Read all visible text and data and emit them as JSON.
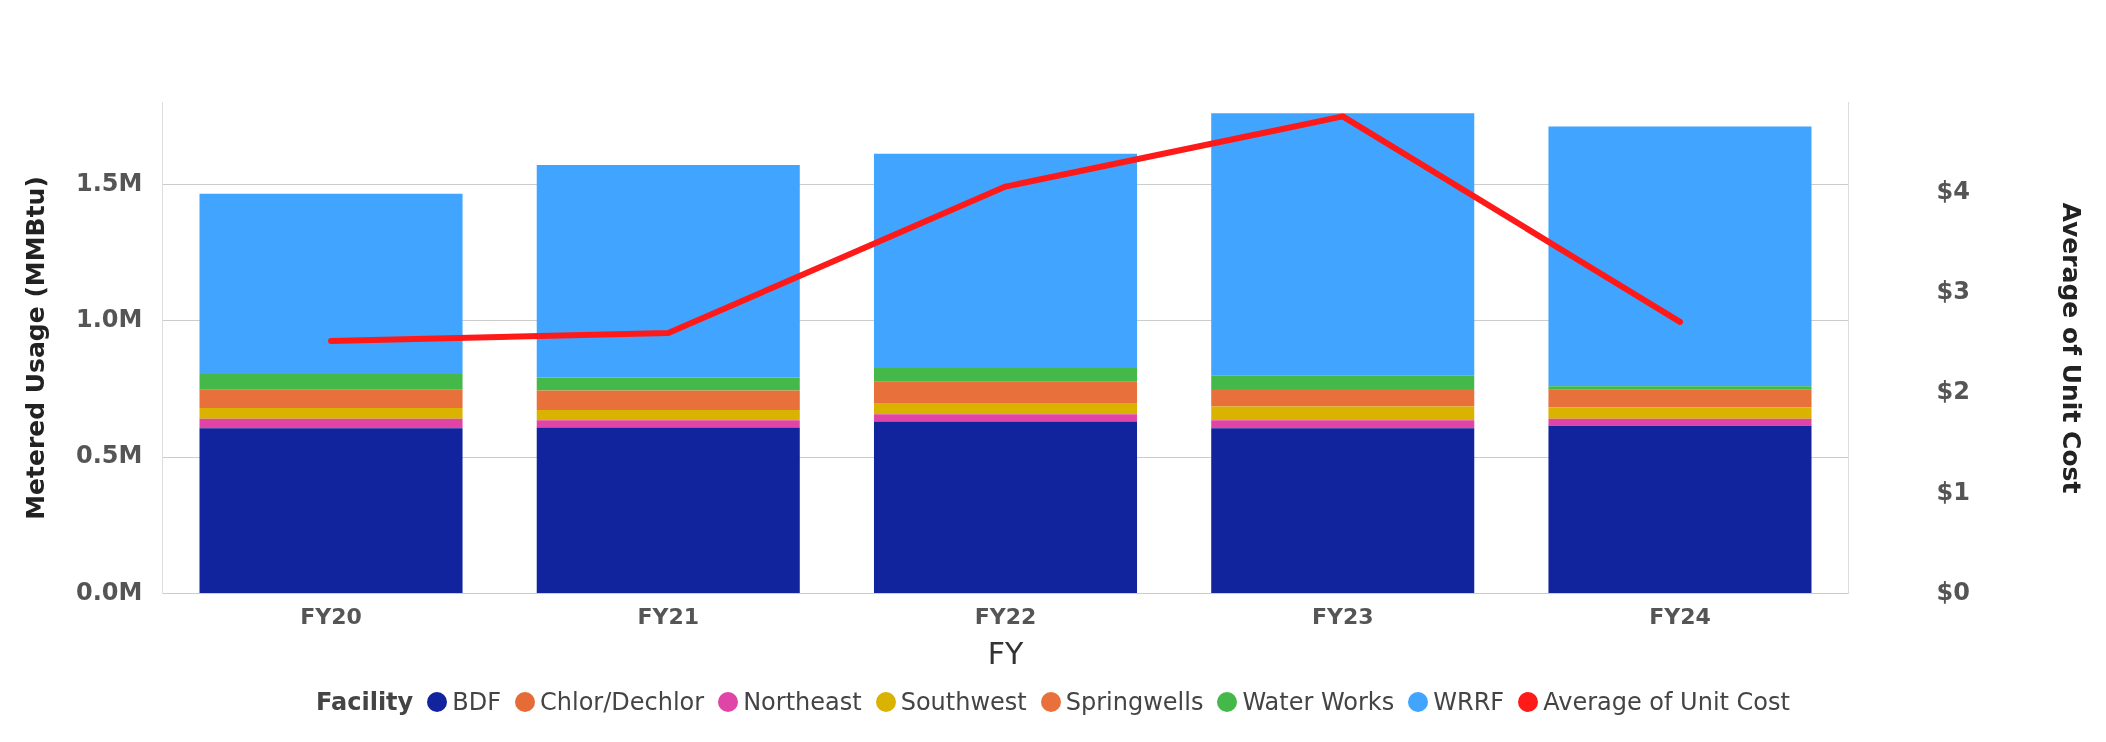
{
  "chart_data": {
    "type": "bar",
    "stacked": true,
    "xlabel": "FY",
    "ylabel": "Metered Usage (MMBtu)",
    "y2label": "Average of Unit Cost",
    "legend_title": "Facility",
    "legend": "bottom",
    "grid": "y",
    "marker": "none",
    "line_style": "solid",
    "categories": [
      "FY20",
      "FY21",
      "FY22",
      "FY23",
      "FY24"
    ],
    "ylim": [
      0,
      1800000
    ],
    "yticks": [
      {
        "value": 0,
        "label": "0.0M"
      },
      {
        "value": 500000,
        "label": "0.5M"
      },
      {
        "value": 1000000,
        "label": "1.0M"
      },
      {
        "value": 1500000,
        "label": "1.5M"
      }
    ],
    "y2lim": [
      0,
      4.9
    ],
    "y2ticks": [
      {
        "value": 0,
        "label": "$0"
      },
      {
        "value": 1,
        "label": "$1"
      },
      {
        "value": 2,
        "label": "$2"
      },
      {
        "value": 3,
        "label": "$3"
      },
      {
        "value": 4,
        "label": "$4"
      }
    ],
    "series": [
      {
        "name": "BDF",
        "color": "#12239e",
        "values": [
          606000,
          609000,
          631000,
          606000,
          615000
        ]
      },
      {
        "name": "Chlor/Dechlor",
        "color": "#e66c37",
        "values": [
          null,
          null,
          null,
          null,
          null
        ]
      },
      {
        "name": "Northeast",
        "color": "#e044a7",
        "values": [
          35000,
          26000,
          26000,
          29000,
          26000
        ]
      },
      {
        "name": "Southwest",
        "color": "#d9b300",
        "values": [
          39000,
          38000,
          39000,
          51000,
          42000
        ]
      },
      {
        "name": "Springwells",
        "color": "#e8703a",
        "values": [
          67000,
          71000,
          80000,
          64000,
          64000
        ]
      },
      {
        "name": "Water Works",
        "color": "#44b94a",
        "values": [
          58000,
          48000,
          51000,
          48000,
          13000
        ]
      },
      {
        "name": "WRRF",
        "color": "#41a4ff",
        "values": [
          660000,
          779000,
          785000,
          962000,
          952000
        ]
      },
      {
        "name": "Average of Unit Cost",
        "type": "line",
        "axis": "y2",
        "color": "#ff1a1a",
        "values": [
          2.52,
          2.6,
          4.06,
          4.76,
          2.71
        ]
      }
    ]
  }
}
